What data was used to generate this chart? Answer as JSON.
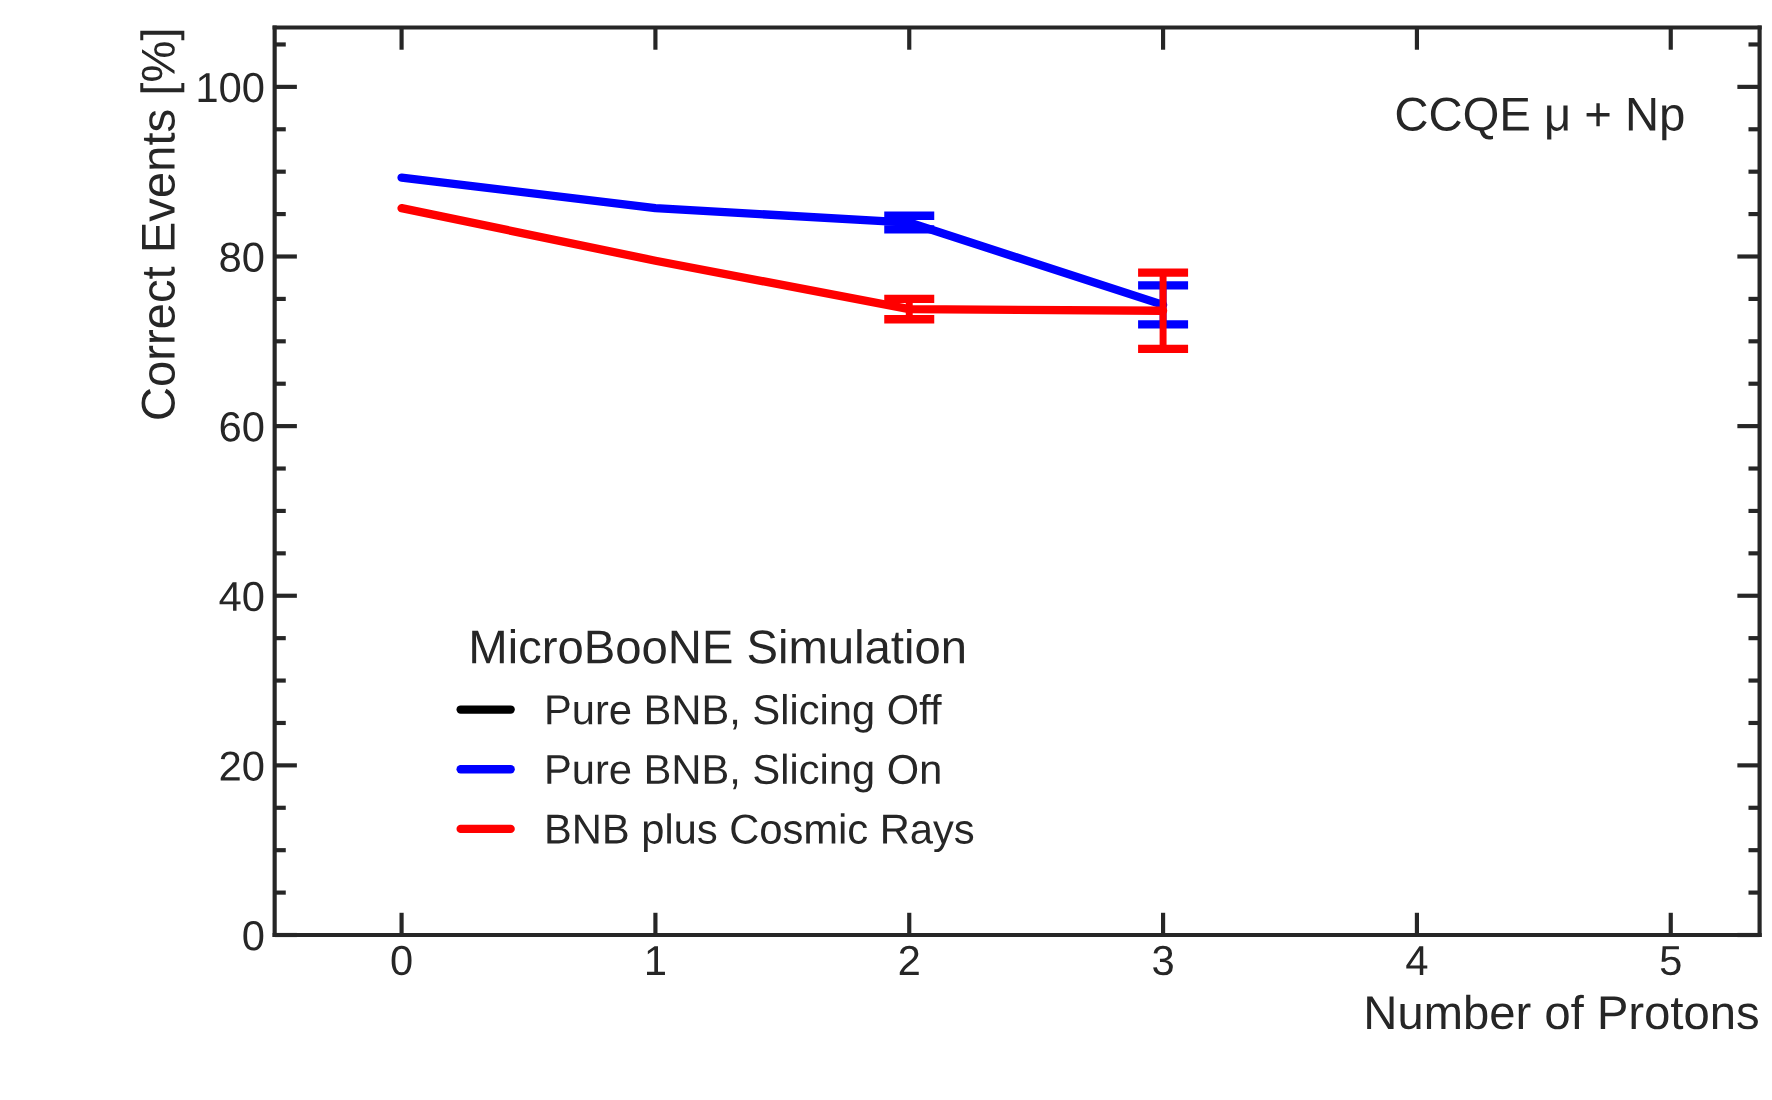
{
  "chart_data": {
    "type": "line",
    "xlabel": "Number of Protons",
    "ylabel": "Correct Events [%]",
    "legend_title": "MicroBooNE Simulation",
    "annotations": [
      "CCQE μ + Np"
    ],
    "x": [
      0,
      1,
      2,
      3
    ],
    "series": [
      {
        "name": "Pure BNB, Slicing Off",
        "color": "#000000",
        "values": [
          null,
          null,
          null,
          null
        ]
      },
      {
        "name": "Pure BNB, Slicing On",
        "color": "#0000ff",
        "values": [
          89.3,
          85.7,
          84.0,
          74.3
        ],
        "errors": [
          null,
          null,
          0.8,
          2.3
        ]
      },
      {
        "name": "BNB plus Cosmic Rays",
        "color": "#ff0000",
        "values": [
          85.7,
          79.5,
          73.8,
          73.6
        ],
        "errors": [
          null,
          null,
          1.2,
          4.5
        ]
      }
    ],
    "xlim": [
      -0.5,
      5.35
    ],
    "ylim": [
      0,
      107
    ],
    "xticks": [
      0,
      1,
      2,
      3,
      4,
      5
    ],
    "yticks": [
      0,
      20,
      40,
      60,
      80,
      100
    ],
    "grid": false,
    "legend": "bottom left",
    "marker": "none",
    "line_style": "solid"
  }
}
